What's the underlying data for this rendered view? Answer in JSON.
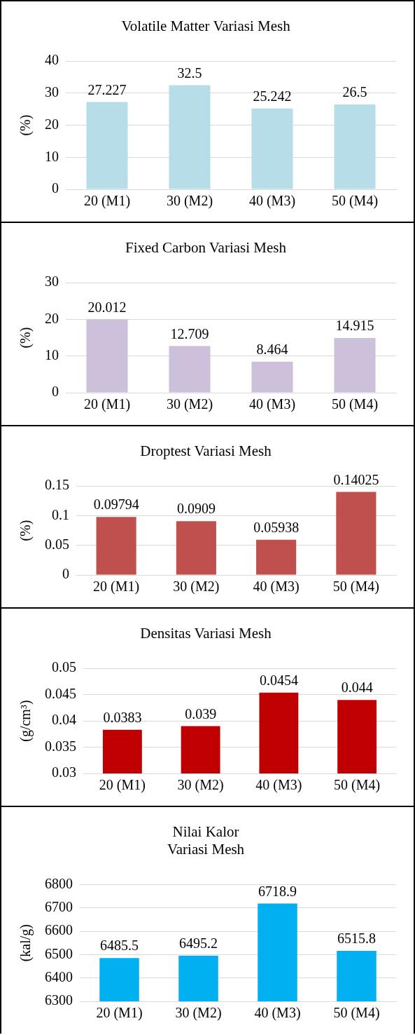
{
  "chart_data": [
    {
      "type": "bar",
      "title": "Volatile Matter Variasi Mesh",
      "ylabel": "(%)",
      "categories": [
        "20 (M1)",
        "30 (M2)",
        "40 (M3)",
        "50 (M4)"
      ],
      "values": [
        27.227,
        32.5,
        25.242,
        26.5
      ],
      "color": "#b7dde8",
      "ylim": [
        0,
        40
      ],
      "yticks": [
        0,
        10,
        20,
        30,
        40
      ],
      "grid": "y",
      "data_labels": true
    },
    {
      "type": "bar",
      "title": "Fixed Carbon Variasi Mesh",
      "ylabel": "(%)",
      "categories": [
        "20 (M1)",
        "30 (M2)",
        "40 (M3)",
        "50 (M4)"
      ],
      "values": [
        20.012,
        12.709,
        8.464,
        14.915
      ],
      "color": "#ccc0da",
      "ylim": [
        0,
        30
      ],
      "yticks": [
        0,
        10,
        20,
        30
      ],
      "grid": "y",
      "data_labels": true
    },
    {
      "type": "bar",
      "title": "Droptest Variasi Mesh",
      "ylabel": "(%)",
      "categories": [
        "20 (M1)",
        "30 (M2)",
        "40 (M3)",
        "50 (M4)"
      ],
      "values": [
        0.09794,
        0.0909,
        0.05938,
        0.14025
      ],
      "color": "#c0504d",
      "ylim": [
        0,
        0.15
      ],
      "yticks": [
        0,
        0.05,
        0.1,
        0.15
      ],
      "grid": "y",
      "data_labels": true
    },
    {
      "type": "bar",
      "title": "Densitas Variasi Mesh",
      "ylabel": "(g/cm³)",
      "categories": [
        "20 (M1)",
        "30 (M2)",
        "40 (M3)",
        "50 (M4)"
      ],
      "values": [
        0.0383,
        0.039,
        0.0454,
        0.044
      ],
      "color": "#c00000",
      "ylim": [
        0.03,
        0.05
      ],
      "yticks": [
        0.03,
        0.035,
        0.04,
        0.045,
        0.05
      ],
      "grid": "y",
      "data_labels": true
    },
    {
      "type": "bar",
      "title": "Nilai Kalor\nVariasi Mesh",
      "ylabel": "(kal/g)",
      "categories": [
        "20 (M1)",
        "30 (M2)",
        "40 (M3)",
        "50 (M4)"
      ],
      "values": [
        6485.5,
        6495.2,
        6718.9,
        6515.8
      ],
      "color": "#00b0f0",
      "ylim": [
        6300,
        6800
      ],
      "yticks": [
        6300,
        6400,
        6500,
        6600,
        6700,
        6800
      ],
      "grid": "y",
      "data_labels": true
    }
  ]
}
